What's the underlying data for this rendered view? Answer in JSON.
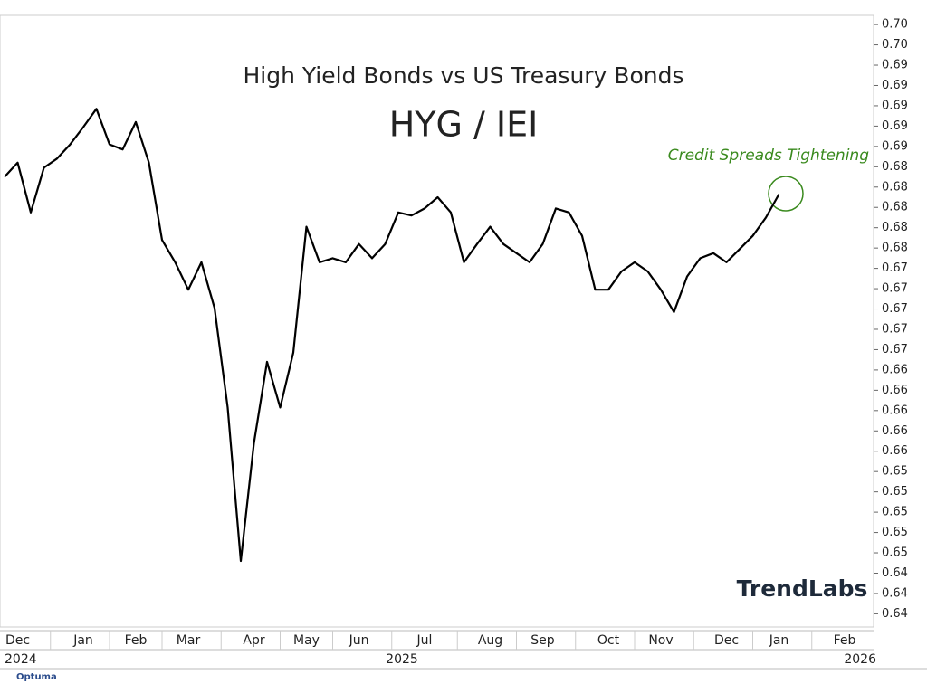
{
  "chart_data": {
    "type": "line",
    "title": "High Yield Bonds vs US Treasury Bonds",
    "subtitle": "HYG / IEI",
    "annotation": "Credit Spreads Tightening",
    "watermark": "TrendLabs",
    "footer": "Optuma",
    "year_labels": [
      "2024",
      "2025",
      "2026"
    ],
    "categories": [
      null,
      "Dec",
      null,
      null,
      null,
      null,
      "Jan",
      null,
      null,
      null,
      "Feb",
      null,
      null,
      null,
      "Mar",
      null,
      null,
      null,
      null,
      "Apr",
      null,
      null,
      null,
      "May",
      null,
      null,
      null,
      "Jun",
      null,
      null,
      null,
      null,
      "Jul",
      null,
      null,
      null,
      null,
      "Aug",
      null,
      null,
      null,
      "Sep",
      null,
      null,
      null,
      null,
      "Oct",
      null,
      null,
      null,
      "Nov",
      null,
      null,
      null,
      null,
      "Dec",
      null,
      null,
      null,
      "Jan",
      null,
      null,
      null,
      null,
      "Feb",
      null
    ],
    "values": [
      0.6835,
      0.6849,
      0.68,
      0.6844,
      0.6853,
      0.6867,
      0.6884,
      0.6902,
      0.6867,
      0.6862,
      0.6889,
      0.6849,
      0.6773,
      0.6751,
      0.6724,
      0.6751,
      0.6706,
      0.6608,
      0.6457,
      0.6573,
      0.6653,
      0.6608,
      0.6662,
      0.6786,
      0.6751,
      0.6755,
      0.6751,
      0.6769,
      0.6755,
      0.6769,
      0.68,
      0.6797,
      0.6804,
      0.6815,
      0.68,
      0.6751,
      0.6769,
      0.6786,
      0.6769,
      0.676,
      0.6751,
      0.6769,
      0.6804,
      0.68,
      0.6777,
      0.6724,
      0.6724,
      0.6742,
      0.6751,
      0.6742,
      0.6724,
      0.6702,
      0.6737,
      0.6755,
      0.676,
      0.6751,
      0.6764,
      0.6777,
      0.6795,
      0.6818,
      null,
      null,
      null,
      null,
      null,
      null
    ],
    "color": "#000000",
    "ylim": [
      0.6392,
      0.6994
    ],
    "yticks": [
      {
        "value": 0.6985,
        "label": "0.70"
      },
      {
        "value": 0.6965,
        "label": "0.70"
      },
      {
        "value": 0.6945,
        "label": "0.69"
      },
      {
        "value": 0.6925,
        "label": "0.69"
      },
      {
        "value": 0.6905,
        "label": "0.69"
      },
      {
        "value": 0.6885,
        "label": "0.69"
      },
      {
        "value": 0.6865,
        "label": "0.69"
      },
      {
        "value": 0.6845,
        "label": "0.68"
      },
      {
        "value": 0.6825,
        "label": "0.68"
      },
      {
        "value": 0.6805,
        "label": "0.68"
      },
      {
        "value": 0.6785,
        "label": "0.68"
      },
      {
        "value": 0.6765,
        "label": "0.68"
      },
      {
        "value": 0.6745,
        "label": "0.67"
      },
      {
        "value": 0.6725,
        "label": "0.67"
      },
      {
        "value": 0.6705,
        "label": "0.67"
      },
      {
        "value": 0.6685,
        "label": "0.67"
      },
      {
        "value": 0.6665,
        "label": "0.67"
      },
      {
        "value": 0.6645,
        "label": "0.66"
      },
      {
        "value": 0.6625,
        "label": "0.66"
      },
      {
        "value": 0.6605,
        "label": "0.66"
      },
      {
        "value": 0.6585,
        "label": "0.66"
      },
      {
        "value": 0.6565,
        "label": "0.66"
      },
      {
        "value": 0.6545,
        "label": "0.65"
      },
      {
        "value": 0.6525,
        "label": "0.65"
      },
      {
        "value": 0.6505,
        "label": "0.65"
      },
      {
        "value": 0.6485,
        "label": "0.65"
      },
      {
        "value": 0.6465,
        "label": "0.65"
      },
      {
        "value": 0.6445,
        "label": "0.64"
      },
      {
        "value": 0.6425,
        "label": "0.64"
      },
      {
        "value": 0.6405,
        "label": "0.64"
      }
    ],
    "grid": false
  }
}
